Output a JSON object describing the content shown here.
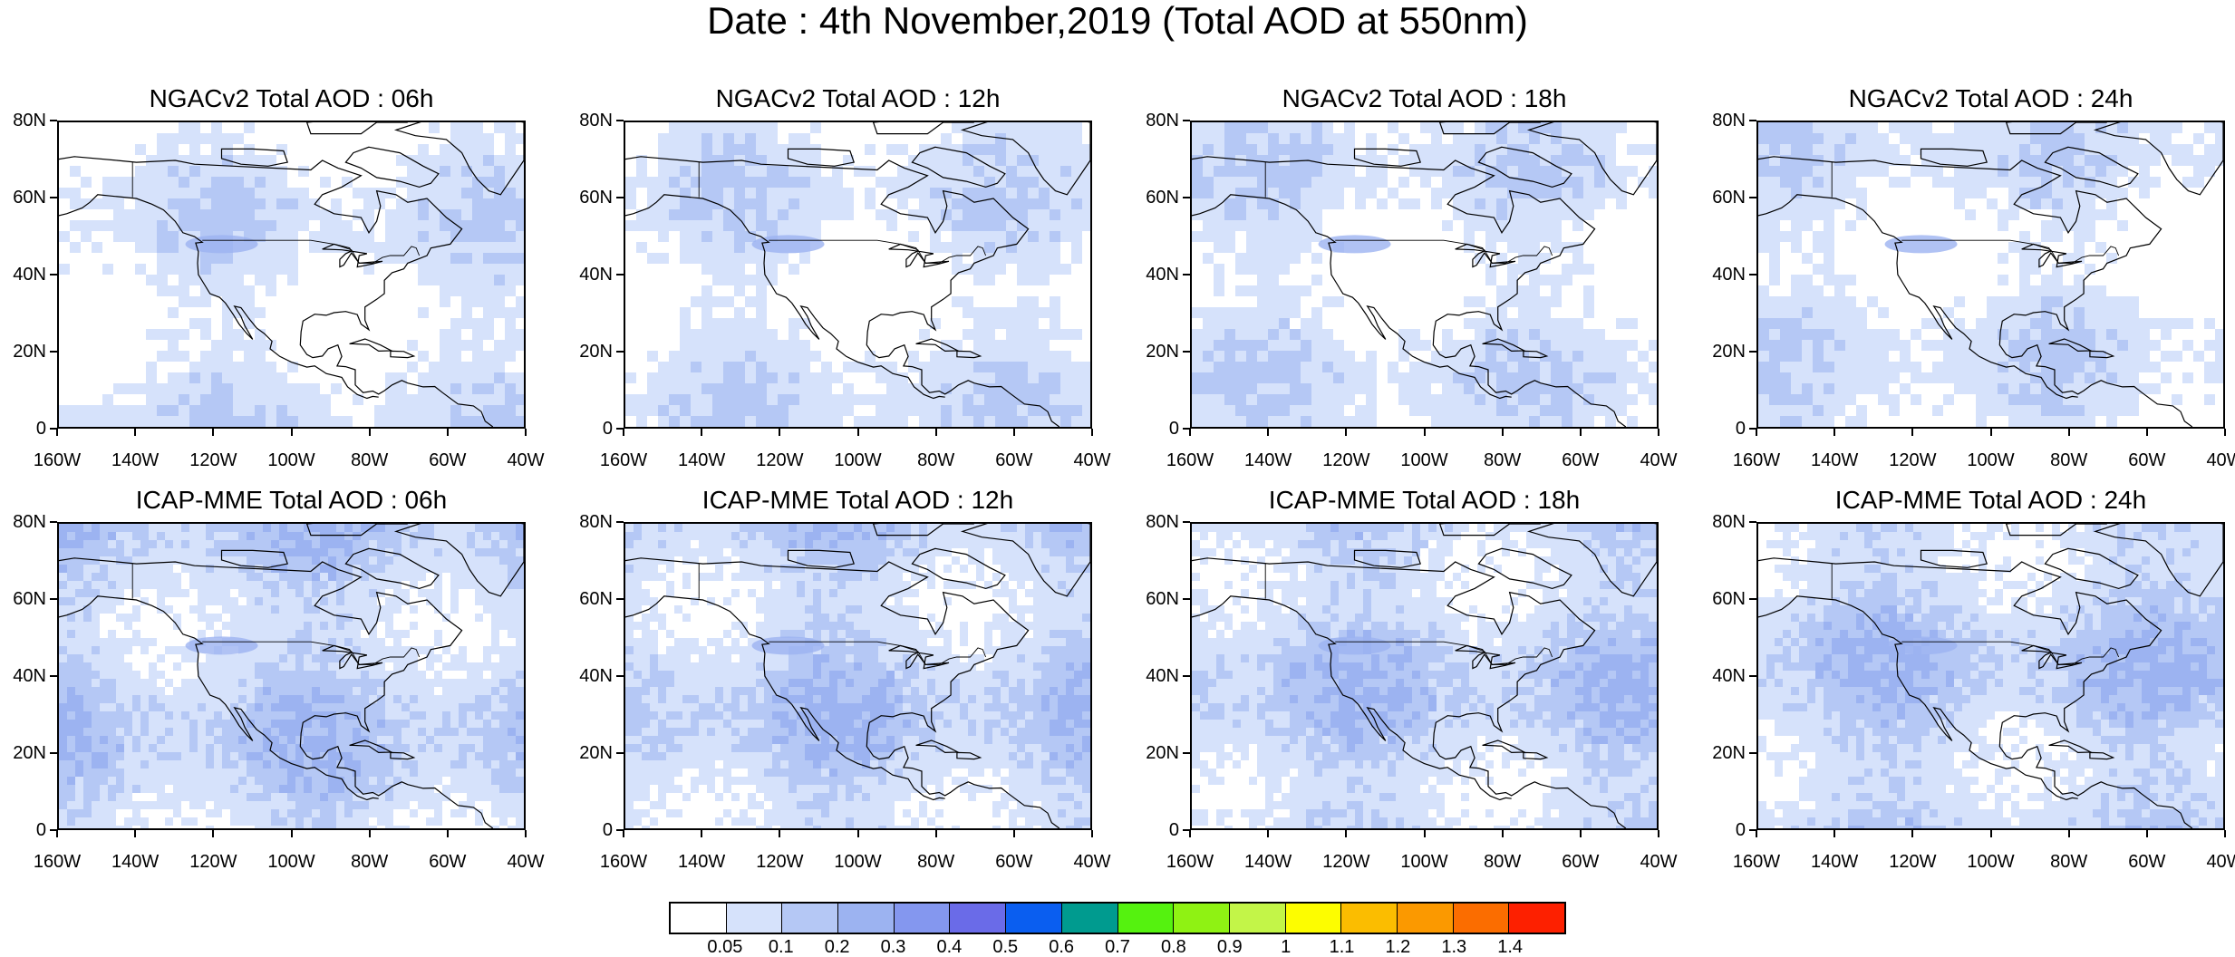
{
  "figure": {
    "title": "Date : 4th November,2019 (Total AOD at 550nm)"
  },
  "panels": [
    {
      "title": "NGACv2 Total AOD : 06h",
      "model": "NGACv2",
      "hour": "06h"
    },
    {
      "title": "NGACv2 Total AOD : 12h",
      "model": "NGACv2",
      "hour": "12h"
    },
    {
      "title": "NGACv2 Total AOD : 18h",
      "model": "NGACv2",
      "hour": "18h"
    },
    {
      "title": "NGACv2 Total AOD : 24h",
      "model": "NGACv2",
      "hour": "24h"
    },
    {
      "title": "ICAP-MME Total AOD : 06h",
      "model": "ICAP-MME",
      "hour": "06h"
    },
    {
      "title": "ICAP-MME Total AOD : 12h",
      "model": "ICAP-MME",
      "hour": "12h"
    },
    {
      "title": "ICAP-MME Total AOD : 18h",
      "model": "ICAP-MME",
      "hour": "18h"
    },
    {
      "title": "ICAP-MME Total AOD : 24h",
      "model": "ICAP-MME",
      "hour": "24h"
    }
  ],
  "axes": {
    "lon_ticks": [
      "160W",
      "140W",
      "120W",
      "100W",
      "80W",
      "60W",
      "40W"
    ],
    "lat_ticks": [
      "80N",
      "60N",
      "40N",
      "20N",
      "0"
    ],
    "lon_range": [
      -160,
      -40
    ],
    "lat_range": [
      0,
      80
    ]
  },
  "colorbar": {
    "labels": [
      "0.05",
      "0.1",
      "0.2",
      "0.3",
      "0.4",
      "0.5",
      "0.6",
      "0.7",
      "0.8",
      "0.9",
      "1",
      "1.1",
      "1.2",
      "1.3",
      "1.4"
    ],
    "colors": [
      "#ffffff",
      "#d6e2fb",
      "#b5c8f5",
      "#9cb3f1",
      "#8497ef",
      "#6a6be8",
      "#0a5ef0",
      "#009b8f",
      "#55f20f",
      "#8ff213",
      "#c3f548",
      "#fdfd00",
      "#fbbd00",
      "#fb9900",
      "#fb6d00",
      "#fd2000"
    ]
  },
  "map_style": {
    "coastline_color": "#000000",
    "base_shade_ngac": "#d6e2fb",
    "base_shade_icap": "#b5c8f5"
  }
}
